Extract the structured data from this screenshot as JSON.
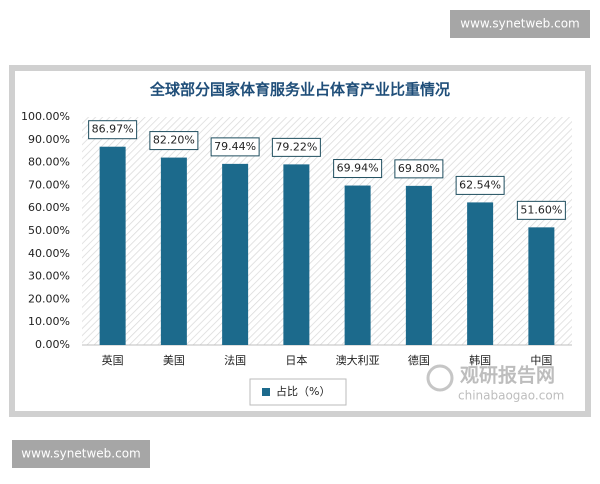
{
  "watermarks": [
    "www.synetweb.com",
    "www.synetweb.com"
  ],
  "logo": {
    "name": "观研报告网",
    "url": "chinabaogao.com"
  },
  "chart_data": {
    "type": "bar",
    "title": "全球部分国家体育服务业占体育产业比重情况",
    "categories": [
      "英国",
      "美国",
      "法国",
      "日本",
      "澳大利亚",
      "德国",
      "韩国",
      "中国"
    ],
    "series": [
      {
        "name": "占比（%）",
        "color": "#1c6a8c",
        "values": [
          86.97,
          82.2,
          79.44,
          79.22,
          69.94,
          69.8,
          62.54,
          51.6
        ],
        "value_labels": [
          "86.97%",
          "82.20%",
          "79.44%",
          "79.22%",
          "69.94%",
          "69.80%",
          "62.54%",
          "51.60%"
        ]
      }
    ],
    "ylim": [
      0,
      100
    ],
    "yticks": [
      {
        "value": 0,
        "label": "0.00%"
      },
      {
        "value": 10,
        "label": "10.00%"
      },
      {
        "value": 20,
        "label": "20.00%"
      },
      {
        "value": 30,
        "label": "30.00%"
      },
      {
        "value": 40,
        "label": "40.00%"
      },
      {
        "value": 50,
        "label": "50.00%"
      },
      {
        "value": 60,
        "label": "60.00%"
      },
      {
        "value": 70,
        "label": "70.00%"
      },
      {
        "value": 80,
        "label": "80.00%"
      },
      {
        "value": 90,
        "label": "90.00%"
      },
      {
        "value": 100,
        "label": "100.00%"
      }
    ],
    "legend": "bottom"
  }
}
